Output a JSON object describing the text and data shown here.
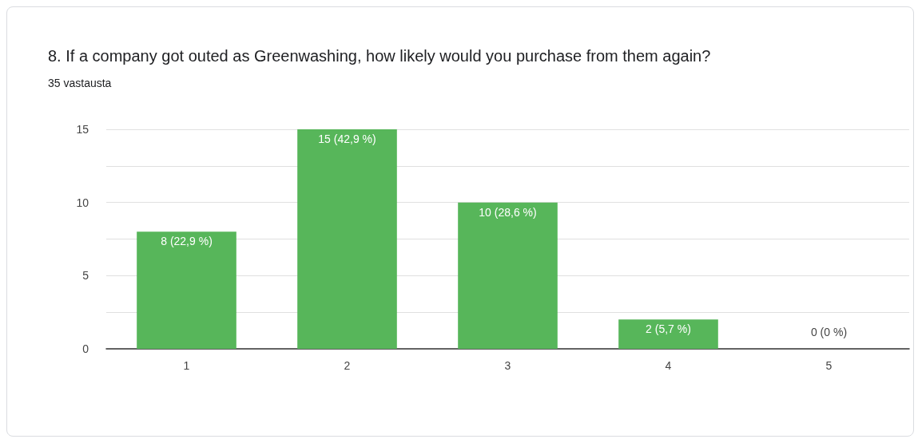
{
  "chart_data": {
    "type": "bar",
    "title": "8. If a company got outed as Greenwashing, how likely would you purchase from them again?",
    "subtitle": "35 vastausta",
    "categories": [
      "1",
      "2",
      "3",
      "4",
      "5"
    ],
    "values": [
      8,
      15,
      10,
      2,
      0
    ],
    "value_labels": [
      "8 (22,9 %)",
      "15 (42,9 %)",
      "10 (28,6 %)",
      "2 (5,7 %)",
      "0 (0 %)"
    ],
    "color": "#57b65a",
    "ylim": [
      0,
      15
    ],
    "yticks": [
      0,
      {
        "value": 2.5,
        "label": null
      },
      5,
      {
        "value": 7.5,
        "label": null
      },
      10,
      {
        "value": 12.5,
        "label": null
      },
      15
    ],
    "grid": true
  }
}
